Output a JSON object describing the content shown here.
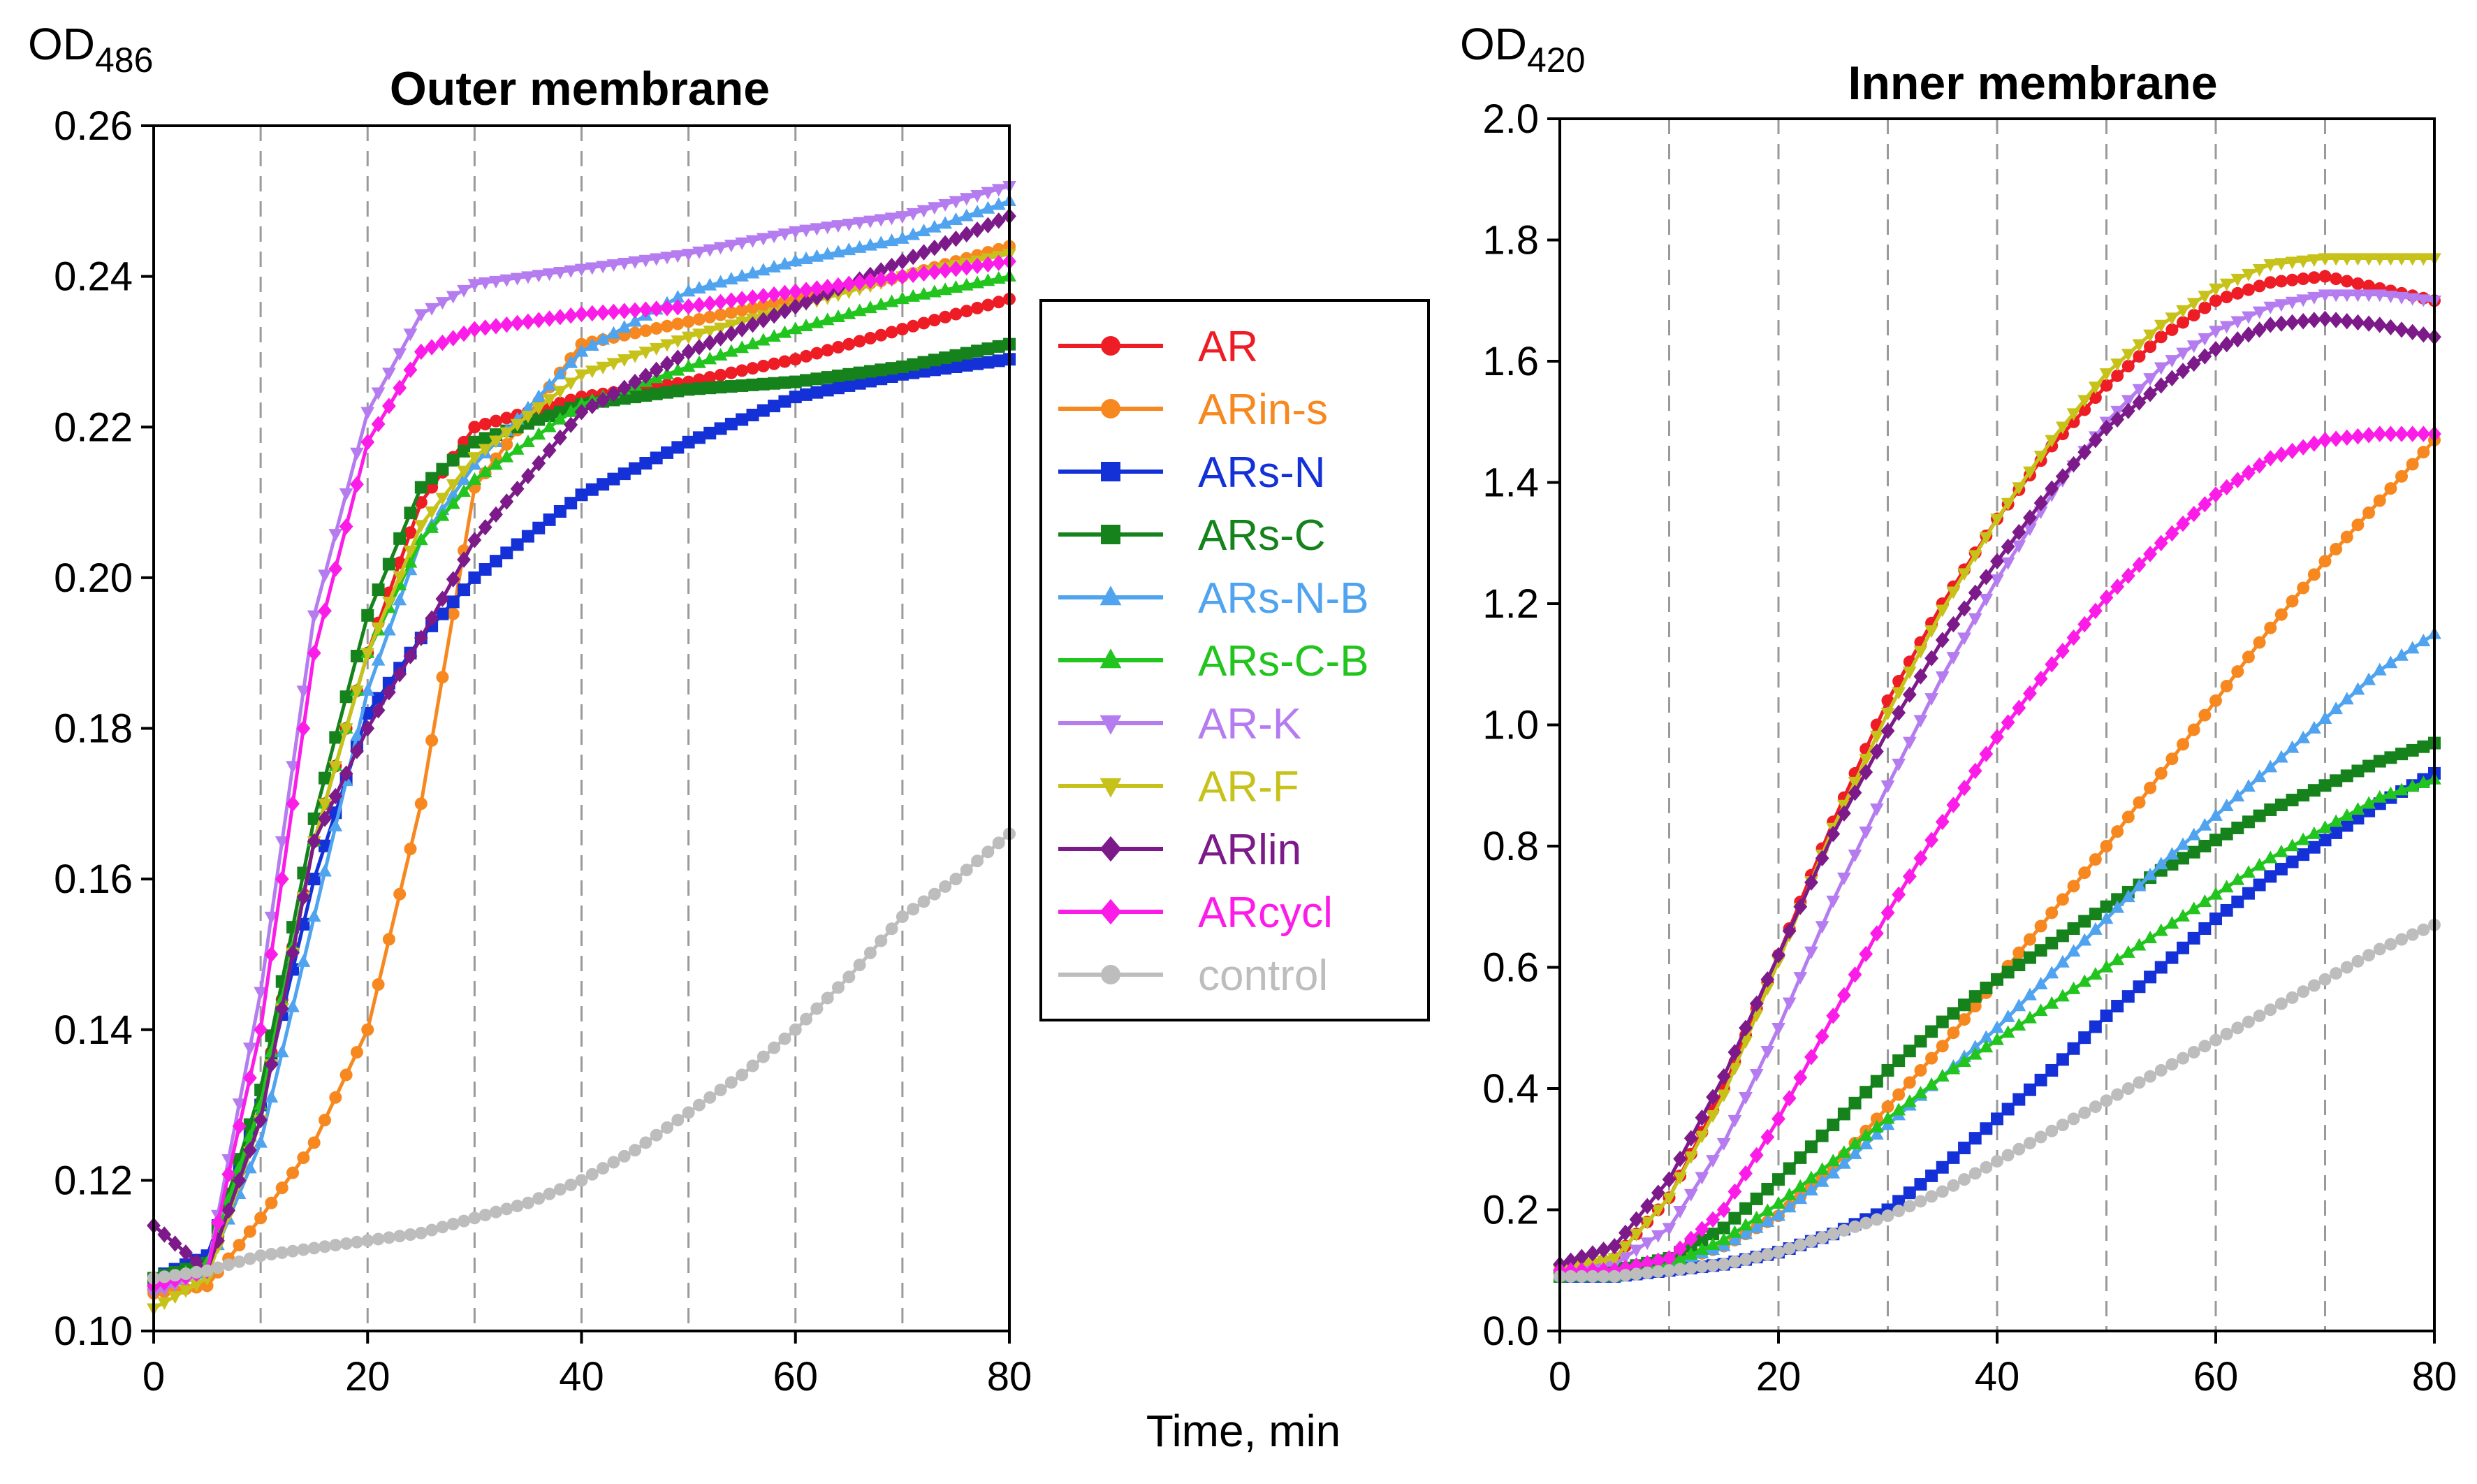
{
  "figure": {
    "x_axis_label": "Time, min"
  },
  "legend": [
    {
      "name": "AR",
      "color": "#ee1c25",
      "marker": "circle"
    },
    {
      "name": "ARin-s",
      "color": "#f7881f",
      "marker": "circle"
    },
    {
      "name": "ARs-N",
      "color": "#1431d8",
      "marker": "square"
    },
    {
      "name": "ARs-C",
      "color": "#15821c",
      "marker": "square"
    },
    {
      "name": "ARs-N-B",
      "color": "#4fa3ef",
      "marker": "triangle-up"
    },
    {
      "name": "ARs-C-B",
      "color": "#22c41e",
      "marker": "triangle-up"
    },
    {
      "name": "AR-K",
      "color": "#b57cf0",
      "marker": "triangle-down"
    },
    {
      "name": "AR-F",
      "color": "#c7c21a",
      "marker": "triangle-down"
    },
    {
      "name": "ARlin",
      "color": "#7c1a8a",
      "marker": "diamond"
    },
    {
      "name": "ARcycl",
      "color": "#fc1ce8",
      "marker": "diamond"
    },
    {
      "name": "control",
      "color": "#bdbdbd",
      "marker": "circle"
    }
  ],
  "chart_data": [
    {
      "type": "line",
      "title": "Outer membrane",
      "ylabel": "OD",
      "ylabel_sub": "486",
      "xlabel": "Time, min",
      "xlim": [
        0,
        80
      ],
      "ylim": [
        0.1,
        0.26
      ],
      "xticks": [
        "0",
        "20",
        "40",
        "60",
        "80"
      ],
      "yticks": [
        "0.10",
        "0.12",
        "0.14",
        "0.16",
        "0.18",
        "0.20",
        "0.22",
        "0.24",
        "0.26"
      ],
      "grid": "vertical dashed every 10 min",
      "series": [
        {
          "name": "AR",
          "x": [
            0,
            5,
            10,
            15,
            20,
            25,
            30,
            40,
            50,
            60,
            70,
            80
          ],
          "values": [
            0.106,
            0.108,
            0.13,
            0.165,
            0.19,
            0.21,
            0.22,
            0.224,
            0.226,
            0.229,
            0.233,
            0.237
          ]
        },
        {
          "name": "ARin-s",
          "x": [
            0,
            5,
            10,
            15,
            20,
            25,
            30,
            40,
            50,
            60,
            70,
            80
          ],
          "values": [
            0.105,
            0.106,
            0.115,
            0.125,
            0.14,
            0.17,
            0.212,
            0.231,
            0.234,
            0.237,
            0.24,
            0.244
          ]
        },
        {
          "name": "ARs-N",
          "x": [
            0,
            5,
            10,
            15,
            20,
            25,
            30,
            40,
            50,
            60,
            70,
            80
          ],
          "values": [
            0.107,
            0.11,
            0.13,
            0.16,
            0.182,
            0.192,
            0.2,
            0.211,
            0.218,
            0.224,
            0.227,
            0.229
          ]
        },
        {
          "name": "ARs-C",
          "x": [
            0,
            5,
            10,
            15,
            20,
            25,
            30,
            40,
            50,
            60,
            70,
            80
          ],
          "values": [
            0.107,
            0.109,
            0.132,
            0.168,
            0.195,
            0.212,
            0.218,
            0.223,
            0.225,
            0.226,
            0.228,
            0.231
          ]
        },
        {
          "name": "ARs-N-B",
          "x": [
            0,
            5,
            10,
            15,
            20,
            25,
            30,
            40,
            50,
            60,
            70,
            80
          ],
          "values": [
            0.106,
            0.108,
            0.125,
            0.155,
            0.185,
            0.205,
            0.215,
            0.23,
            0.238,
            0.242,
            0.245,
            0.25
          ]
        },
        {
          "name": "ARs-C-B",
          "x": [
            0,
            5,
            10,
            15,
            20,
            25,
            30,
            40,
            50,
            60,
            70,
            80
          ],
          "values": [
            0.106,
            0.109,
            0.13,
            0.165,
            0.19,
            0.205,
            0.213,
            0.223,
            0.228,
            0.233,
            0.237,
            0.24
          ]
        },
        {
          "name": "AR-K",
          "x": [
            0,
            5,
            10,
            15,
            20,
            25,
            30,
            40,
            50,
            60,
            70,
            80
          ],
          "values": [
            0.105,
            0.108,
            0.145,
            0.195,
            0.222,
            0.235,
            0.239,
            0.241,
            0.243,
            0.246,
            0.248,
            0.252
          ]
        },
        {
          "name": "AR-F",
          "x": [
            0,
            5,
            10,
            15,
            20,
            25,
            30,
            40,
            50,
            60,
            70,
            80
          ],
          "values": [
            0.103,
            0.107,
            0.128,
            0.165,
            0.19,
            0.207,
            0.216,
            0.227,
            0.232,
            0.236,
            0.24,
            0.243
          ]
        },
        {
          "name": "ARlin",
          "x": [
            0,
            5,
            10,
            15,
            20,
            25,
            30,
            40,
            50,
            60,
            70,
            80
          ],
          "values": [
            0.114,
            0.108,
            0.128,
            0.165,
            0.18,
            0.192,
            0.205,
            0.222,
            0.23,
            0.236,
            0.242,
            0.248
          ]
        },
        {
          "name": "ARcycl",
          "x": [
            0,
            5,
            10,
            15,
            20,
            25,
            30,
            40,
            50,
            60,
            70,
            80
          ],
          "values": [
            0.106,
            0.108,
            0.14,
            0.19,
            0.218,
            0.23,
            0.233,
            0.235,
            0.236,
            0.238,
            0.24,
            0.242
          ]
        },
        {
          "name": "control",
          "x": [
            0,
            5,
            10,
            15,
            20,
            25,
            30,
            35,
            40,
            45,
            50,
            55,
            60,
            65,
            70,
            75,
            80
          ],
          "values": [
            0.107,
            0.108,
            0.11,
            0.111,
            0.112,
            0.113,
            0.115,
            0.117,
            0.12,
            0.124,
            0.129,
            0.134,
            0.14,
            0.147,
            0.155,
            0.16,
            0.166
          ]
        }
      ]
    },
    {
      "type": "line",
      "title": "Inner membrane",
      "ylabel": "OD",
      "ylabel_sub": "420",
      "xlabel": "Time, min",
      "xlim": [
        0,
        80
      ],
      "ylim": [
        0.0,
        2.0
      ],
      "xticks": [
        "0",
        "20",
        "40",
        "60",
        "80"
      ],
      "yticks": [
        "0.0",
        "0.2",
        "0.4",
        "0.6",
        "0.8",
        "1.0",
        "1.2",
        "1.4",
        "1.6",
        "1.8",
        "2.0"
      ],
      "grid": "vertical dashed every 10 min",
      "series": [
        {
          "name": "AR",
          "x": [
            0,
            5,
            10,
            15,
            20,
            25,
            30,
            35,
            40,
            45,
            50,
            55,
            60,
            65,
            70,
            75,
            80
          ],
          "values": [
            0.1,
            0.12,
            0.22,
            0.4,
            0.62,
            0.84,
            1.04,
            1.2,
            1.34,
            1.46,
            1.56,
            1.64,
            1.7,
            1.73,
            1.74,
            1.72,
            1.7
          ]
        },
        {
          "name": "ARin-s",
          "x": [
            0,
            5,
            10,
            15,
            20,
            25,
            30,
            35,
            40,
            45,
            50,
            55,
            60,
            65,
            70,
            75,
            80
          ],
          "values": [
            0.1,
            0.1,
            0.11,
            0.14,
            0.19,
            0.27,
            0.37,
            0.47,
            0.58,
            0.69,
            0.8,
            0.92,
            1.04,
            1.16,
            1.27,
            1.37,
            1.47
          ]
        },
        {
          "name": "ARs-N",
          "x": [
            0,
            5,
            10,
            15,
            20,
            25,
            30,
            35,
            40,
            45,
            50,
            55,
            60,
            65,
            70,
            75,
            80
          ],
          "values": [
            0.09,
            0.09,
            0.1,
            0.11,
            0.13,
            0.16,
            0.2,
            0.27,
            0.35,
            0.43,
            0.52,
            0.6,
            0.68,
            0.75,
            0.81,
            0.87,
            0.92
          ]
        },
        {
          "name": "ARs-C",
          "x": [
            0,
            5,
            10,
            15,
            20,
            25,
            30,
            35,
            40,
            45,
            50,
            55,
            60,
            65,
            70,
            75,
            80
          ],
          "values": [
            0.09,
            0.1,
            0.12,
            0.17,
            0.25,
            0.34,
            0.43,
            0.51,
            0.58,
            0.64,
            0.7,
            0.76,
            0.81,
            0.86,
            0.9,
            0.94,
            0.97
          ]
        },
        {
          "name": "ARs-N-B",
          "x": [
            0,
            5,
            10,
            15,
            20,
            25,
            30,
            35,
            40,
            45,
            50,
            55,
            60,
            65,
            70,
            75,
            80
          ],
          "values": [
            0.09,
            0.09,
            0.11,
            0.14,
            0.19,
            0.26,
            0.34,
            0.42,
            0.5,
            0.59,
            0.68,
            0.77,
            0.85,
            0.93,
            1.01,
            1.09,
            1.15
          ]
        },
        {
          "name": "ARs-C-B",
          "x": [
            0,
            5,
            10,
            15,
            20,
            25,
            30,
            35,
            40,
            45,
            50,
            55,
            60,
            65,
            70,
            75,
            80
          ],
          "values": [
            0.09,
            0.09,
            0.11,
            0.15,
            0.21,
            0.28,
            0.35,
            0.42,
            0.48,
            0.54,
            0.6,
            0.66,
            0.72,
            0.78,
            0.83,
            0.88,
            0.91
          ]
        },
        {
          "name": "AR-K",
          "x": [
            0,
            5,
            10,
            15,
            20,
            25,
            30,
            35,
            40,
            45,
            50,
            55,
            60,
            65,
            70,
            75,
            80
          ],
          "values": [
            0.1,
            0.11,
            0.17,
            0.31,
            0.5,
            0.71,
            0.9,
            1.08,
            1.24,
            1.38,
            1.5,
            1.59,
            1.65,
            1.69,
            1.71,
            1.71,
            1.7
          ]
        },
        {
          "name": "AR-F",
          "x": [
            0,
            5,
            10,
            15,
            20,
            25,
            30,
            35,
            40,
            45,
            50,
            55,
            60,
            65,
            70,
            75,
            80
          ],
          "values": [
            0.1,
            0.12,
            0.22,
            0.39,
            0.61,
            0.83,
            1.02,
            1.19,
            1.34,
            1.47,
            1.58,
            1.66,
            1.72,
            1.76,
            1.77,
            1.77,
            1.77
          ]
        },
        {
          "name": "ARlin",
          "x": [
            0,
            5,
            10,
            15,
            20,
            25,
            30,
            35,
            40,
            45,
            50,
            55,
            60,
            65,
            70,
            75,
            80
          ],
          "values": [
            0.11,
            0.14,
            0.25,
            0.42,
            0.62,
            0.82,
            0.99,
            1.14,
            1.27,
            1.39,
            1.49,
            1.56,
            1.62,
            1.66,
            1.67,
            1.66,
            1.64
          ]
        },
        {
          "name": "ARcycl",
          "x": [
            0,
            5,
            10,
            15,
            20,
            25,
            30,
            35,
            40,
            45,
            50,
            55,
            60,
            65,
            70,
            75,
            80
          ],
          "values": [
            0.1,
            0.1,
            0.12,
            0.2,
            0.35,
            0.52,
            0.69,
            0.84,
            0.98,
            1.1,
            1.21,
            1.3,
            1.38,
            1.44,
            1.47,
            1.48,
            1.48
          ]
        },
        {
          "name": "control",
          "x": [
            0,
            5,
            10,
            15,
            20,
            25,
            30,
            35,
            40,
            45,
            50,
            55,
            60,
            65,
            70,
            75,
            80
          ],
          "values": [
            0.09,
            0.09,
            0.1,
            0.11,
            0.13,
            0.16,
            0.19,
            0.23,
            0.28,
            0.33,
            0.38,
            0.43,
            0.48,
            0.53,
            0.58,
            0.63,
            0.67
          ]
        }
      ]
    }
  ]
}
